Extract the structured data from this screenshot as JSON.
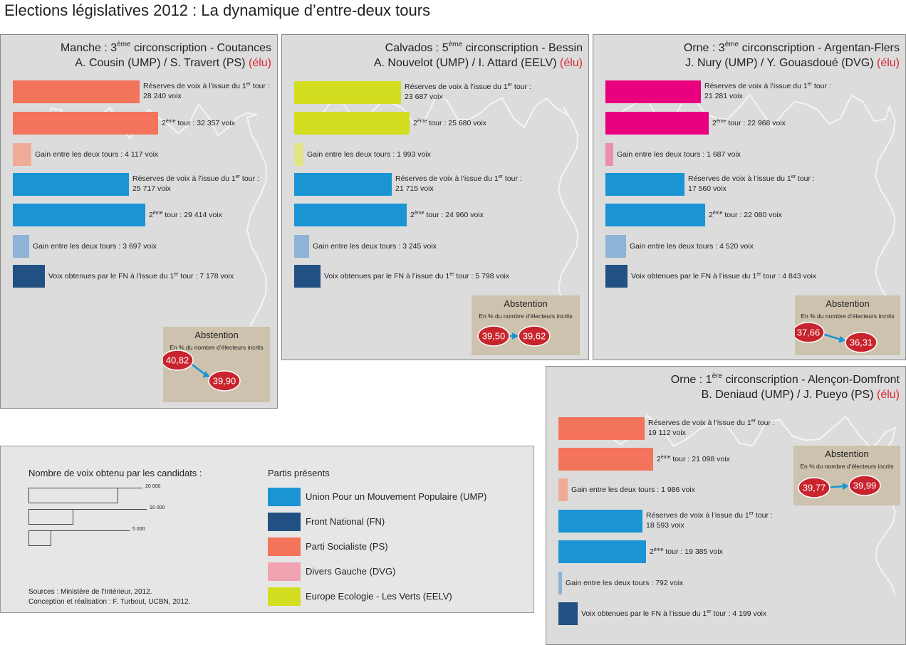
{
  "title": "Elections législatives 2012 : La dynamique d’entre-deux tours",
  "colors": {
    "UMP": "#1a94d3",
    "UMP_gain": "#8db3d6",
    "FN": "#235082",
    "PS": "#f3735b",
    "PS_gain": "#eeac98",
    "DVG": "#e9007f",
    "DVG_gain": "#ea8fae",
    "DVG_legend": "#f0a2b0",
    "EELV": "#d4de20",
    "EELV_gain": "#e2e583",
    "abstention_badge": "#c8242d"
  },
  "chart_data": [
    {
      "type": "bar",
      "title_line1": "Manche : 3ème circonscription - Coutances",
      "title_line2_names": "A. Cousin (UMP) / S. Travert (PS)",
      "elu": "(élu)",
      "bars": [
        {
          "party": "PS",
          "kind": "reserves",
          "value": 28240,
          "label": "Réserves de voix à l’issue du 1er tour :",
          "value_text": "28 240 voix"
        },
        {
          "party": "PS",
          "kind": "second",
          "value": 32357,
          "label": "2ème tour : 32 357 voix"
        },
        {
          "party": "PS",
          "kind": "gain",
          "value": 4117,
          "label": "Gain entre les deux tours : 4 117 voix"
        },
        {
          "party": "UMP",
          "kind": "reserves",
          "value": 25717,
          "label": "Réserves de voix à l’issue du 1er tour :",
          "value_text": "25 717 voix"
        },
        {
          "party": "UMP",
          "kind": "second",
          "value": 29414,
          "label": "2ème tour : 29 414 voix"
        },
        {
          "party": "UMP",
          "kind": "gain",
          "value": 3697,
          "label": "Gain entre les deux tours : 3 697 voix"
        },
        {
          "party": "FN",
          "kind": "fn",
          "value": 7178,
          "label": "Voix obtenues par le FN à l’issue du 1er tour : 7 178 voix"
        }
      ],
      "abstention": {
        "title": "Abstention",
        "subtitle": "En % du nombre d’électeurs incrits",
        "from": "40,82",
        "to": "39,90"
      }
    },
    {
      "type": "bar",
      "title_line1": "Calvados : 5ème circonscription - Bessin",
      "title_line2_names": "A. Nouvelot (UMP) / I. Attard (EELV)",
      "elu": "(élu)",
      "bars": [
        {
          "party": "EELV",
          "kind": "reserves",
          "value": 23687,
          "label": "Réserves de voix à l’issue du 1er tour :",
          "value_text": "23 687 voix"
        },
        {
          "party": "EELV",
          "kind": "second",
          "value": 25680,
          "label": "2ème tour : 25 680 voix"
        },
        {
          "party": "EELV",
          "kind": "gain",
          "value": 1993,
          "label": "Gain entre les deux tours : 1 993 voix"
        },
        {
          "party": "UMP",
          "kind": "reserves",
          "value": 21715,
          "label": "Réserves de voix à l’issue du 1er tour :",
          "value_text": "21 715 voix"
        },
        {
          "party": "UMP",
          "kind": "second",
          "value": 24960,
          "label": "2ème tour : 24 960 voix"
        },
        {
          "party": "UMP",
          "kind": "gain",
          "value": 3245,
          "label": "Gain entre les deux tours : 3 245 voix"
        },
        {
          "party": "FN",
          "kind": "fn",
          "value": 5798,
          "label": "Voix obtenues par le FN à l’issue du 1er tour : 5 798 voix"
        }
      ],
      "abstention": {
        "title": "Abstention",
        "subtitle": "En % du nombre d’électeurs incrits",
        "from": "39,50",
        "to": "39,62"
      }
    },
    {
      "type": "bar",
      "title_line1": "Orne : 3ème circonscription - Argentan-Flers",
      "title_line2_names": "J. Nury (UMP) / Y. Gouasdoué (DVG)",
      "elu": "(élu)",
      "bars": [
        {
          "party": "DVG",
          "kind": "reserves",
          "value": 21281,
          "label": "Réserves de voix à l’issue du 1er tour :",
          "value_text": "21 281 voix"
        },
        {
          "party": "DVG",
          "kind": "second",
          "value": 22968,
          "label": "2ème tour : 22 968 voix"
        },
        {
          "party": "DVG",
          "kind": "gain",
          "value": 1687,
          "label": "Gain entre les deux tours : 1 687 voix"
        },
        {
          "party": "UMP",
          "kind": "reserves",
          "value": 17560,
          "label": "Réserves de voix à l’issue du 1er tour :",
          "value_text": "17 560 voix"
        },
        {
          "party": "UMP",
          "kind": "second",
          "value": 22080,
          "label": "2ème tour : 22 080 voix"
        },
        {
          "party": "UMP",
          "kind": "gain",
          "value": 4520,
          "label": "Gain entre les deux tours : 4 520 voix"
        },
        {
          "party": "FN",
          "kind": "fn",
          "value": 4843,
          "label": "Voix obtenues par le FN à l’issue du 1er tour : 4 843 voix"
        }
      ],
      "abstention": {
        "title": "Abstention",
        "subtitle": "En % du nombre d’électeurs incrits",
        "from": "37,66",
        "to": "36,31"
      }
    },
    {
      "type": "bar",
      "title_line1": "Orne : 1ère circonscription - Alençon-Domfront",
      "title_line2_names": "B. Deniaud (UMP) / J. Pueyo (PS)",
      "elu": "(élu)",
      "bars": [
        {
          "party": "PS",
          "kind": "reserves",
          "value": 19112,
          "label": "Réserves de voix à l’issue du 1er tour :",
          "value_text": "19 112 voix"
        },
        {
          "party": "PS",
          "kind": "second",
          "value": 21098,
          "label": "2ème tour : 21 098 voix"
        },
        {
          "party": "PS",
          "kind": "gain",
          "value": 1986,
          "label": "Gain entre les deux tours : 1 986 voix"
        },
        {
          "party": "UMP",
          "kind": "reserves",
          "value": 18593,
          "label": "Réserves de voix à l’issue du 1er tour :",
          "value_text": "18 593 voix"
        },
        {
          "party": "UMP",
          "kind": "second",
          "value": 19385,
          "label": "2ème tour : 19 385 voix"
        },
        {
          "party": "UMP",
          "kind": "gain",
          "value": 792,
          "label": "Gain entre les deux tours : 792 voix"
        },
        {
          "party": "FN",
          "kind": "fn",
          "value": 4199,
          "label": "Voix obtenues par le FN à l’issue du 1er tour :  4 199 voix"
        }
      ],
      "abstention": {
        "title": "Abstention",
        "subtitle": "En % du nombre d’électeurs incrits",
        "from": "39,77",
        "to": "39,99"
      }
    }
  ],
  "legend": {
    "scale_title": "Nombre de voix obtenu par les candidats :",
    "scale": [
      {
        "value": 20000,
        "label": "20 000"
      },
      {
        "value": 10000,
        "label": "10 000"
      },
      {
        "value": 5000,
        "label": "5 000"
      }
    ],
    "parties_title": "Partis présents",
    "parties": [
      {
        "key": "UMP",
        "label": "Union Pour un Mouvement Populaire (UMP)"
      },
      {
        "key": "FN",
        "label": "Front National (FN)"
      },
      {
        "key": "PS",
        "label": "Parti Socialiste (PS)"
      },
      {
        "key": "DVG_legend",
        "label": "Divers Gauche (DVG)"
      },
      {
        "key": "EELV",
        "label": "Europe Ecologie - Les Verts (EELV)"
      }
    ],
    "sources": "Sources : Ministère de l’Intérieur, 2012.",
    "credits": "Conception et réalisation : F. Turbout, UCBN, 2012."
  }
}
